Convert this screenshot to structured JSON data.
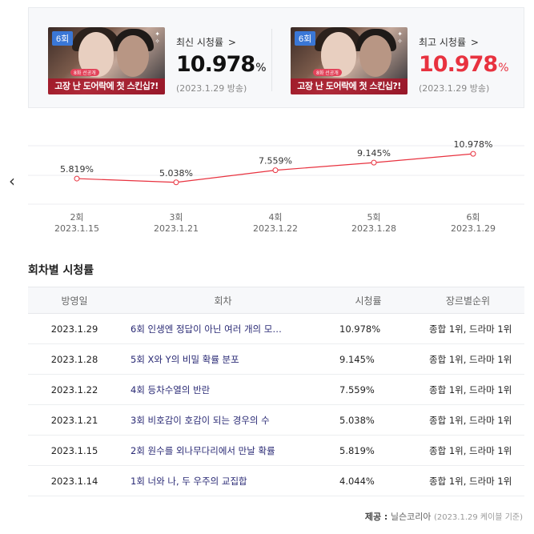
{
  "latest": {
    "label": "최신 시청률",
    "chevron": ">",
    "value": "10.978",
    "unit": "%",
    "date": "(2023.1.29 방송)",
    "thumb": {
      "episode_badge": "6회",
      "sub_badge": "8화 선공개",
      "caption": "고장 난 도어락에 첫 스킨십?!"
    }
  },
  "highest": {
    "label": "최고 시청률",
    "chevron": ">",
    "value": "10.978",
    "unit": "%",
    "date": "(2023.1.29 방송)",
    "thumb": {
      "episode_badge": "6회",
      "sub_badge": "8화 선공개",
      "caption": "고장 난 도어락에 첫 스킨십?!"
    }
  },
  "chart_data": {
    "type": "line",
    "categories": [
      "2회",
      "3회",
      "4회",
      "5회",
      "6회"
    ],
    "dates": [
      "2023.1.15",
      "2023.1.21",
      "2023.1.22",
      "2023.1.28",
      "2023.1.29"
    ],
    "values": [
      5.819,
      5.038,
      7.559,
      9.145,
      10.978
    ],
    "value_labels": [
      "5.819%",
      "5.038%",
      "7.559%",
      "9.145%",
      "10.978%"
    ],
    "line_color": "#e8323f",
    "grid": true,
    "prev_icon": "chevron-left-icon"
  },
  "episodes_table": {
    "title": "회차별 시청률",
    "columns": [
      "방영일",
      "회차",
      "시청률",
      "장르별순위"
    ],
    "rows": [
      {
        "date": "2023.1.29",
        "episode": "6회 인생엔 정답이 아닌 여러 개의 모…",
        "rating": "10.978%",
        "rank": "종합 1위, 드라마 1위"
      },
      {
        "date": "2023.1.28",
        "episode": "5회 X와 Y의 비밀 확률 분포",
        "rating": "9.145%",
        "rank": "종합 1위, 드라마 1위"
      },
      {
        "date": "2023.1.22",
        "episode": "4회 등차수열의 반란",
        "rating": "7.559%",
        "rank": "종합 1위, 드라마 1위"
      },
      {
        "date": "2023.1.21",
        "episode": "3회 비호감이 호감이 되는 경우의 수",
        "rating": "5.038%",
        "rank": "종합 1위, 드라마 1위"
      },
      {
        "date": "2023.1.15",
        "episode": "2회 원수를 외나무다리에서 만날 확률",
        "rating": "5.819%",
        "rank": "종합 1위, 드라마 1위"
      },
      {
        "date": "2023.1.14",
        "episode": "1회 너와 나, 두 우주의 교집합",
        "rating": "4.044%",
        "rank": "종합 1위, 드라마 1위"
      }
    ]
  },
  "source": {
    "label": "제공 :",
    "provider": "닐슨코리아",
    "note": "(2023.1.29 케이블 기준)"
  }
}
